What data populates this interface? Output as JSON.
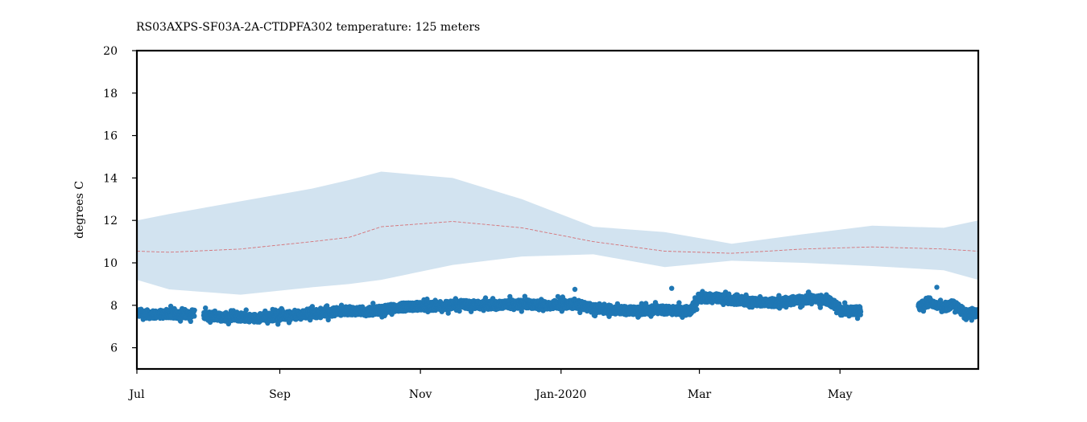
{
  "chart_data": {
    "type": "scatter",
    "title": "RS03AXPS-SF03A-2A-CTDPFA302 temperature: 125 meters",
    "xlabel": "",
    "ylabel": "degrees C",
    "ylim": [
      5,
      20
    ],
    "xlim": [
      "2019-07-01",
      "2020-06-30"
    ],
    "grid": false,
    "x_ticks": [
      {
        "date": "2019-07-01",
        "label": "Jul"
      },
      {
        "date": "2019-09-01",
        "label": "Sep"
      },
      {
        "date": "2019-11-01",
        "label": "Nov"
      },
      {
        "date": "2020-01-01",
        "label": "Jan-2020"
      },
      {
        "date": "2020-03-01",
        "label": "Mar"
      },
      {
        "date": "2020-05-01",
        "label": "May"
      }
    ],
    "y_ticks": [
      6,
      8,
      10,
      12,
      14,
      16,
      18,
      20
    ],
    "colors": {
      "observations": "#1f77b4",
      "climatology_mean": "#d62728",
      "climatology_band": "#a6c8e1"
    },
    "climatology": {
      "dates": [
        "2019-07-01",
        "2019-07-15",
        "2019-08-15",
        "2019-09-15",
        "2019-10-01",
        "2019-10-15",
        "2019-11-15",
        "2019-12-15",
        "2020-01-15",
        "2020-02-15",
        "2020-03-15",
        "2020-04-15",
        "2020-05-15",
        "2020-06-15",
        "2020-06-30"
      ],
      "mean": [
        10.55,
        10.5,
        10.65,
        11.0,
        11.2,
        11.7,
        11.95,
        11.65,
        11.0,
        10.55,
        10.45,
        10.65,
        10.75,
        10.65,
        10.55
      ],
      "upper": [
        12.0,
        12.3,
        12.9,
        13.5,
        13.9,
        14.3,
        14.0,
        13.0,
        11.7,
        11.45,
        10.9,
        11.35,
        11.75,
        11.65,
        12.0
      ],
      "lower": [
        9.2,
        8.75,
        8.5,
        8.85,
        9.0,
        9.2,
        9.9,
        10.3,
        10.4,
        9.8,
        10.1,
        10.0,
        9.85,
        9.65,
        9.2
      ]
    },
    "observations": {
      "segments": [
        {
          "dates": [
            "2019-07-01",
            "2019-07-08",
            "2019-07-15",
            "2019-07-22",
            "2019-07-26"
          ],
          "values": [
            7.65,
            7.55,
            7.6,
            7.55,
            7.65
          ]
        },
        {
          "dates": [
            "2019-07-30",
            "2019-08-07",
            "2019-08-14",
            "2019-08-21",
            "2019-08-28",
            "2019-09-04",
            "2019-09-11",
            "2019-09-18",
            "2019-09-25",
            "2019-10-02",
            "2019-10-09",
            "2019-10-16",
            "2019-10-23",
            "2019-10-30",
            "2019-11-06",
            "2019-11-13",
            "2019-11-20",
            "2019-11-27",
            "2019-12-04",
            "2019-12-11",
            "2019-12-18",
            "2019-12-25",
            "2020-01-01",
            "2020-01-08",
            "2020-01-15",
            "2020-01-22",
            "2020-01-29",
            "2020-02-05",
            "2020-02-12",
            "2020-02-19",
            "2020-02-26",
            "2020-03-01",
            "2020-03-08",
            "2020-03-15",
            "2020-03-22",
            "2020-03-29",
            "2020-04-05",
            "2020-04-12",
            "2020-04-19",
            "2020-04-26",
            "2020-05-03",
            "2020-05-10"
          ],
          "values": [
            7.5,
            7.45,
            7.45,
            7.4,
            7.45,
            7.5,
            7.55,
            7.6,
            7.7,
            7.75,
            7.7,
            7.8,
            7.9,
            7.95,
            7.95,
            8.0,
            8.05,
            8.0,
            8.0,
            8.05,
            8.05,
            8.0,
            8.05,
            8.05,
            7.85,
            7.8,
            7.75,
            7.75,
            7.8,
            7.75,
            7.75,
            8.35,
            8.35,
            8.25,
            8.2,
            8.1,
            8.15,
            8.25,
            8.3,
            8.2,
            7.75,
            7.75
          ]
        },
        {
          "dates": [
            "2020-06-04",
            "2020-06-09",
            "2020-06-14",
            "2020-06-19",
            "2020-06-24",
            "2020-06-30"
          ],
          "values": [
            7.95,
            8.15,
            7.85,
            8.05,
            7.65,
            7.6
          ]
        }
      ],
      "spikes": [
        {
          "date": "2020-02-18",
          "value": 8.8
        },
        {
          "date": "2020-01-07",
          "value": 8.75
        },
        {
          "date": "2020-06-12",
          "value": 8.85
        }
      ]
    }
  }
}
